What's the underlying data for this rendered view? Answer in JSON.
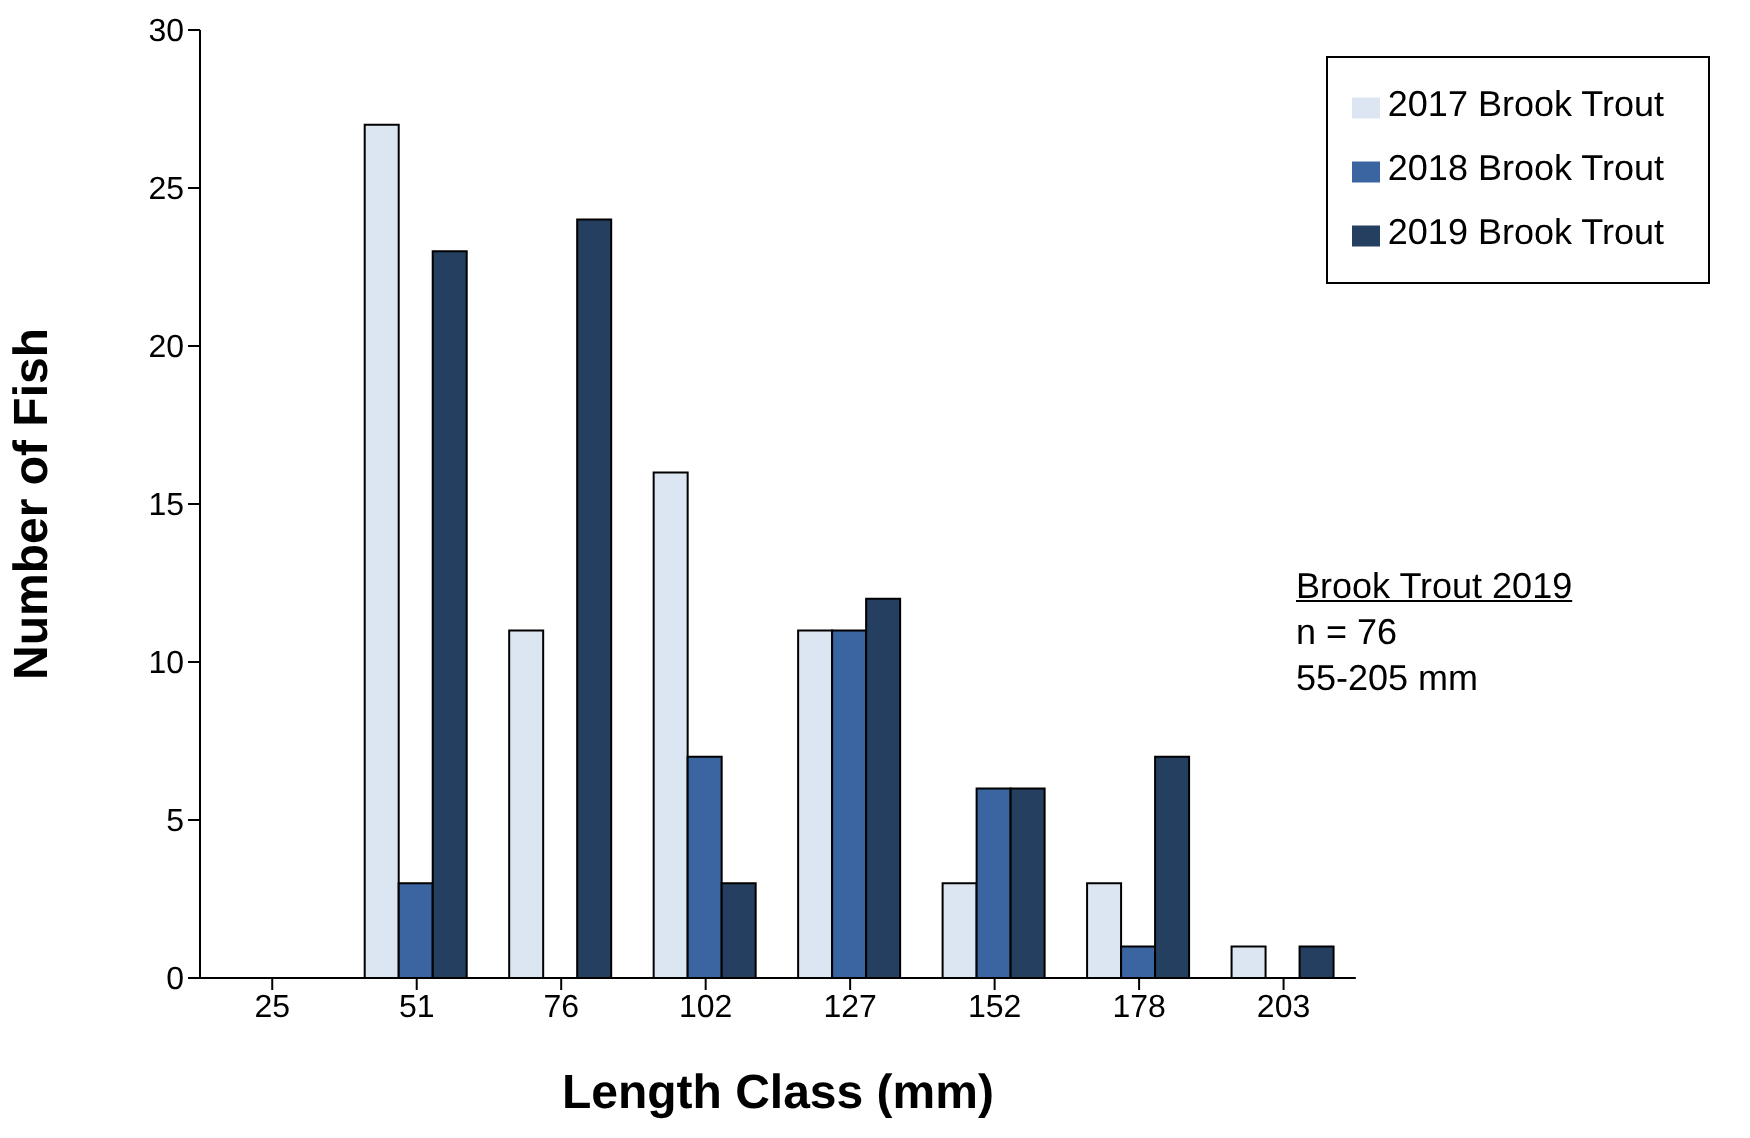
{
  "chart_data": {
    "type": "bar",
    "xlabel": "Length Class (mm)",
    "ylabel": "Number of Fish",
    "categories": [
      "25",
      "51",
      "76",
      "102",
      "127",
      "152",
      "178",
      "203"
    ],
    "series": [
      {
        "name": "2017 Brook Trout",
        "color": "#dce6f2",
        "values": [
          0,
          27,
          11,
          16,
          11,
          3,
          3,
          1
        ]
      },
      {
        "name": "2018 Brook Trout",
        "color": "#3a65a0",
        "values": [
          0,
          3,
          0,
          7,
          11,
          6,
          1,
          0
        ]
      },
      {
        "name": "2019 Brook Trout",
        "color": "#243f60",
        "values": [
          0,
          23,
          24,
          3,
          12,
          6,
          7,
          1
        ]
      }
    ],
    "ylim": [
      0,
      30
    ],
    "yticks": [
      0,
      5,
      10,
      15,
      20,
      25,
      30
    ],
    "grid": false,
    "legend": "top right",
    "annotations": [
      "Brook Trout 2019",
      "n = 76",
      "55-205 mm"
    ]
  }
}
